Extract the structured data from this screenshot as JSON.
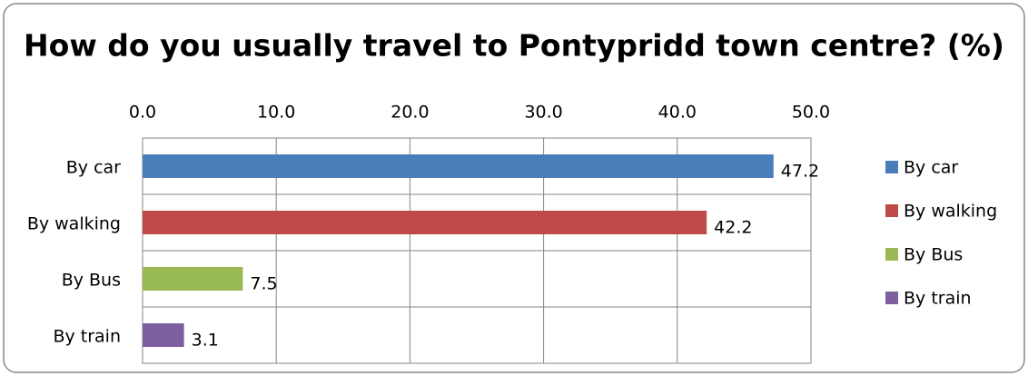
{
  "chart_data": {
    "type": "bar",
    "orientation": "horizontal",
    "title": "How do you usually travel to Pontypridd town centre? (%)",
    "categories": [
      "By car",
      "By walking",
      "By Bus",
      "By train"
    ],
    "values": [
      47.2,
      42.2,
      7.5,
      3.1
    ],
    "colors": [
      "#4a7ebb",
      "#be4b48",
      "#98b954",
      "#7d60a0"
    ],
    "xlim": [
      0,
      50
    ],
    "xticks": [
      {
        "value": 0,
        "label": "0.0"
      },
      {
        "value": 10,
        "label": "10.0"
      },
      {
        "value": 20,
        "label": "20.0"
      },
      {
        "value": 30,
        "label": "30.0"
      },
      {
        "value": 40,
        "label": "40.0"
      },
      {
        "value": 50,
        "label": "50.0"
      }
    ],
    "grid": true,
    "legend": "right"
  }
}
